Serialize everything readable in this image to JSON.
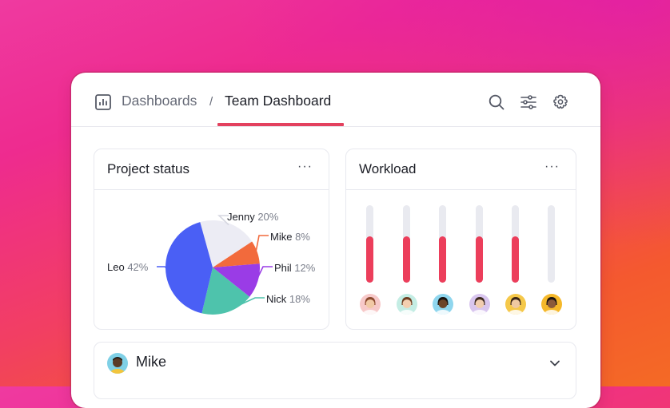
{
  "breadcrumb": {
    "root": "Dashboards",
    "separator": "/",
    "current": "Team Dashboard"
  },
  "header_icons": [
    "search-icon",
    "filter-icon",
    "gear-icon"
  ],
  "colors": {
    "accent": "#e3415e",
    "bar": "#ec3e5b",
    "pie": {
      "Jenny": "#ececf4",
      "Mike": "#f26a3c",
      "Phil": "#9a3ce6",
      "Nick": "#4ec3ac",
      "Leo": "#4a5ff5"
    }
  },
  "project_status": {
    "title": "Project status",
    "more": "···",
    "chart_data": {
      "type": "pie",
      "slices": [
        {
          "name": "Jenny",
          "label": "20%",
          "value": 20
        },
        {
          "name": "Mike",
          "label": "8%",
          "value": 8
        },
        {
          "name": "Phil",
          "label": "12%",
          "value": 12
        },
        {
          "name": "Nick",
          "label": "18%",
          "value": 18
        },
        {
          "name": "Leo",
          "label": "42%",
          "value": 42
        }
      ]
    }
  },
  "workload": {
    "title": "Workload",
    "more": "···",
    "bars": [
      {
        "fill": 0.6
      },
      {
        "fill": 0.6
      },
      {
        "fill": 0.6
      },
      {
        "fill": 0.6
      },
      {
        "fill": 0.6
      },
      {
        "fill": 0.0
      }
    ]
  },
  "mike_row": {
    "name": "Mike",
    "chevron": "chevron-down-icon"
  }
}
